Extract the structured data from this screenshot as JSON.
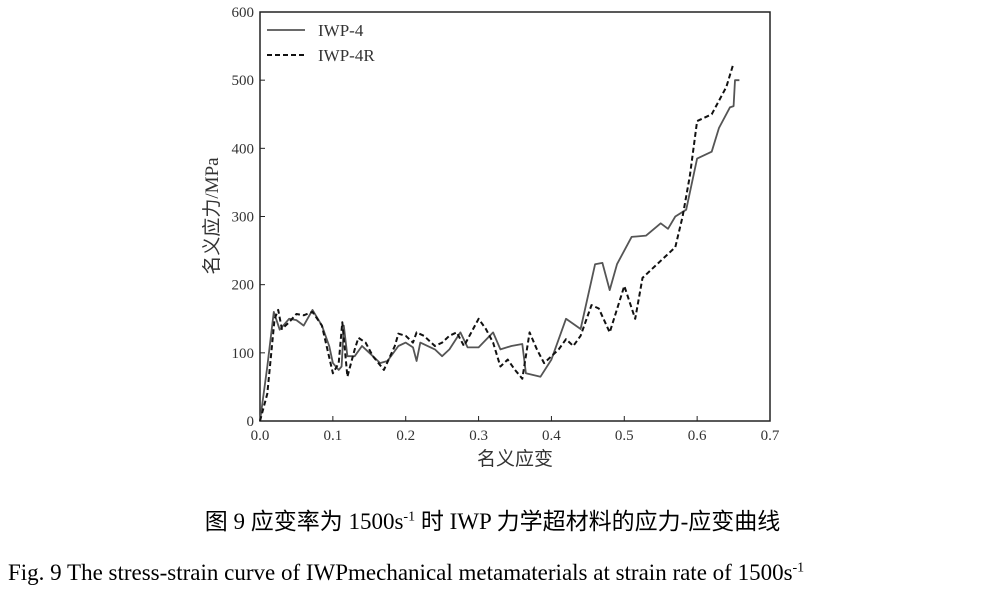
{
  "chart_data": {
    "type": "line",
    "xlabel": "名义应变",
    "ylabel": "名义应力/MPa",
    "xlim": [
      0,
      0.7
    ],
    "ylim": [
      0,
      600
    ],
    "xticks": [
      "0.0",
      "0.1",
      "0.2",
      "0.3",
      "0.4",
      "0.5",
      "0.6",
      "0.7"
    ],
    "yticks": [
      "0",
      "100",
      "200",
      "300",
      "400",
      "500",
      "600"
    ],
    "grid": false,
    "legend_position": "top-left",
    "series": [
      {
        "name": "IWP-4",
        "style": "solid",
        "color": "#555555",
        "x": [
          0,
          0.01,
          0.019,
          0.027,
          0.04,
          0.05,
          0.06,
          0.072,
          0.085,
          0.095,
          0.1,
          0.108,
          0.112,
          0.115,
          0.12,
          0.13,
          0.14,
          0.15,
          0.165,
          0.175,
          0.19,
          0.2,
          0.21,
          0.215,
          0.22,
          0.24,
          0.25,
          0.26,
          0.275,
          0.285,
          0.3,
          0.32,
          0.33,
          0.345,
          0.36,
          0.365,
          0.385,
          0.4,
          0.42,
          0.44,
          0.46,
          0.47,
          0.48,
          0.49,
          0.51,
          0.53,
          0.55,
          0.56,
          0.57,
          0.585,
          0.6,
          0.62,
          0.63,
          0.645,
          0.65,
          0.652,
          0.658
        ],
        "y": [
          0,
          80,
          160,
          134,
          150,
          148,
          140,
          163,
          140,
          110,
          85,
          75,
          80,
          140,
          95,
          95,
          110,
          100,
          85,
          88,
          110,
          115,
          108,
          88,
          115,
          105,
          95,
          105,
          130,
          108,
          108,
          130,
          105,
          110,
          113,
          70,
          65,
          90,
          150,
          135,
          230,
          232,
          192,
          230,
          270,
          272,
          290,
          282,
          300,
          310,
          385,
          395,
          430,
          460,
          462,
          500,
          500
        ]
      },
      {
        "name": "IWP-4R",
        "style": "dashed",
        "color": "#111111",
        "x": [
          0,
          0.01,
          0.02,
          0.025,
          0.03,
          0.04,
          0.05,
          0.06,
          0.072,
          0.085,
          0.1,
          0.108,
          0.113,
          0.12,
          0.13,
          0.135,
          0.145,
          0.155,
          0.17,
          0.185,
          0.19,
          0.2,
          0.21,
          0.215,
          0.225,
          0.24,
          0.25,
          0.26,
          0.27,
          0.28,
          0.3,
          0.31,
          0.32,
          0.33,
          0.34,
          0.35,
          0.36,
          0.37,
          0.38,
          0.39,
          0.41,
          0.42,
          0.43,
          0.44,
          0.455,
          0.465,
          0.48,
          0.5,
          0.515,
          0.525,
          0.545,
          0.56,
          0.57,
          0.58,
          0.59,
          0.6,
          0.62,
          0.64,
          0.65
        ],
        "y": [
          0,
          40,
          150,
          163,
          135,
          145,
          157,
          155,
          160,
          140,
          70,
          85,
          145,
          65,
          105,
          122,
          115,
          95,
          75,
          110,
          128,
          125,
          115,
          130,
          125,
          110,
          115,
          125,
          130,
          110,
          150,
          135,
          115,
          80,
          90,
          75,
          62,
          130,
          105,
          85,
          105,
          120,
          110,
          125,
          170,
          165,
          130,
          198,
          150,
          210,
          230,
          245,
          255,
          300,
          360,
          440,
          450,
          490,
          525
        ]
      }
    ]
  },
  "caption_cn": {
    "before": "图 9 应变率为 1500s",
    "sup": "-1",
    "after": " 时 IWP 力学超材料的应力-应变曲线"
  },
  "caption_en": {
    "before": "Fig. 9 The stress-strain curve of IWPmechanical metamaterials at strain rate of 1500s",
    "sup": "-1"
  }
}
